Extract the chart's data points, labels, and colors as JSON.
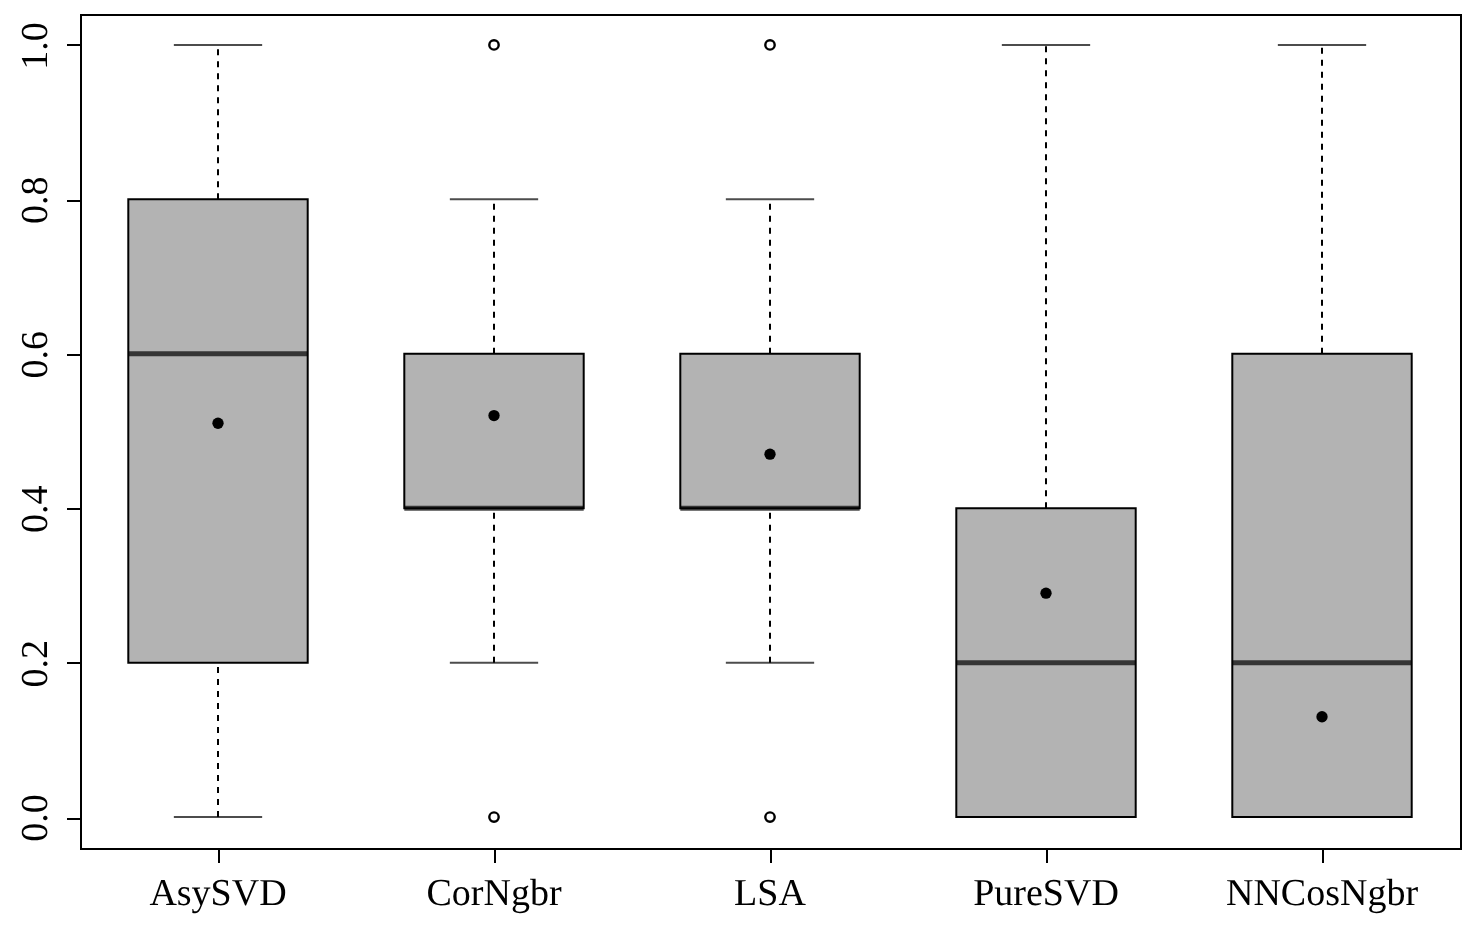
{
  "chart_data": {
    "type": "box",
    "categories": [
      "AsySVD",
      "CorNgbr",
      "LSA",
      "PureSVD",
      "NNCosNgbr"
    ],
    "boxes": [
      {
        "low": 0,
        "q1": 0.2,
        "median": 0.6,
        "q3": 0.8,
        "high": 1,
        "mean": 0.51
      },
      {
        "low": 0.2,
        "q1": 0.4,
        "median": 0.4,
        "q3": 0.6,
        "high": 0.8,
        "mean": 0.52,
        "outliers": [
          0,
          1
        ]
      },
      {
        "low": 0.2,
        "q1": 0.4,
        "median": 0.4,
        "q3": 0.6,
        "high": 0.8,
        "mean": 0.47,
        "outliers": [
          0,
          1
        ]
      },
      {
        "low": 0,
        "q1": 0,
        "median": 0.2,
        "q3": 0.4,
        "high": 1,
        "mean": 0.29
      },
      {
        "low": 0,
        "q1": 0,
        "median": 0.2,
        "q3": 0.6,
        "high": 1,
        "mean": 0.13
      }
    ],
    "color": "#b3b3b3",
    "ylim": [
      -0.04,
      1.04
    ],
    "yticks": [
      {
        "value": 0,
        "label": "0.0"
      },
      {
        "value": 0.2,
        "label": "0.2"
      },
      {
        "value": 0.4,
        "label": "0.4"
      },
      {
        "value": 0.6,
        "label": "0.6"
      },
      {
        "value": 0.8,
        "label": "0.8"
      },
      {
        "value": 1,
        "label": "1.0"
      }
    ],
    "grid": false
  }
}
